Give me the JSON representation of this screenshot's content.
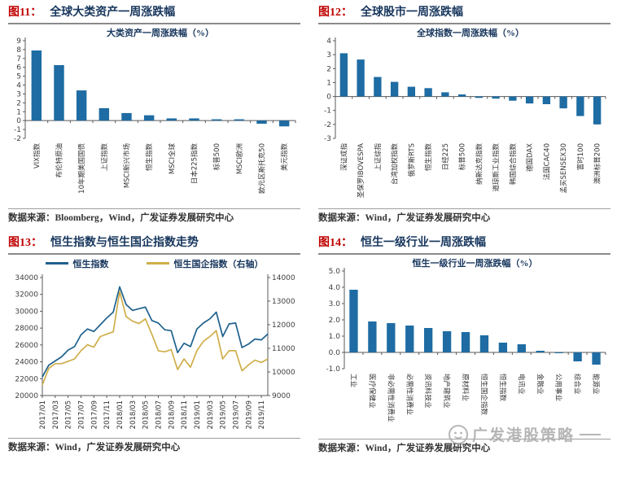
{
  "page": {
    "watermark": "广发港股策略"
  },
  "panels": [
    {
      "fig_label": "图11：",
      "title": "全球大类资产一周涨跌幅",
      "source": "数据来源：Bloomberg，Wind，广发证券发展研究中心"
    },
    {
      "fig_label": "图12：",
      "title": "全球股市一周涨跌幅",
      "source": "数据来源：Wind，广发证券发展研究中心"
    },
    {
      "fig_label": "图13：",
      "title": "恒生指数与恒生国企指数走势",
      "source": "数据来源：Wind，广发证券发展研究中心"
    },
    {
      "fig_label": "图14：",
      "title": "恒生一级行业一周涨跌幅",
      "source": "数据来源：Wind，广发证券发展研究中心"
    }
  ],
  "chart_data": [
    {
      "type": "bar",
      "title": "大类资产一周涨跌幅（%）",
      "categories": [
        "VIX指数",
        "布伦特原油",
        "10年期美国国债",
        "上证指数",
        "MSCI新兴市场",
        "恒生指数",
        "MSCI全球",
        "日本225指数",
        "标普500",
        "MSCI欧洲",
        "欧元区斯托克50",
        "美元指数"
      ],
      "values": [
        7.9,
        6.25,
        3.4,
        1.4,
        0.85,
        0.6,
        0.25,
        0.25,
        0.15,
        0.15,
        -0.35,
        -0.65
      ],
      "ylim": [
        -2,
        9
      ],
      "ystep": 1,
      "ydecimals": 0,
      "grid": false,
      "label_rotation": "ccw",
      "bar_color": "#1e6ca3"
    },
    {
      "type": "bar",
      "title": "全球指数一周涨跌幅（%）",
      "categories": [
        "深证成指",
        "圣保罗IBOVESPA",
        "上证综指",
        "台湾加权指数",
        "俄罗斯RTS",
        "恒生指数",
        "日经225",
        "标普500",
        "纳斯达克指数",
        "道琼斯工业指数",
        "韩国综合指数",
        "德国DAX",
        "法国CAC40",
        "孟买SENSEX30",
        "富时100",
        "澳洲标普200"
      ],
      "values": [
        3.1,
        2.65,
        1.4,
        1.05,
        0.7,
        0.6,
        0.3,
        0.15,
        -0.1,
        -0.15,
        -0.3,
        -0.5,
        -0.55,
        -0.85,
        -1.4,
        -2.0
      ],
      "ylim": [
        -3,
        4
      ],
      "ystep": 1,
      "ydecimals": 0,
      "grid": false,
      "label_rotation": "ccw",
      "bar_color": "#1e6ca3"
    },
    {
      "type": "line",
      "title": "",
      "x_months": [
        "2017/01",
        "2017/02",
        "2017/03",
        "2017/04",
        "2017/05",
        "2017/06",
        "2017/07",
        "2017/08",
        "2017/09",
        "2017/10",
        "2017/11",
        "2017/12",
        "2018/01",
        "2018/02",
        "2018/03",
        "2018/04",
        "2018/05",
        "2018/06",
        "2018/07",
        "2018/08",
        "2018/09",
        "2018/10",
        "2018/11",
        "2018/12",
        "2019/01",
        "2019/02",
        "2019/03",
        "2019/04",
        "2019/05",
        "2019/06",
        "2019/07",
        "2019/08",
        "2019/09",
        "2019/10",
        "2019/11",
        "2019/12"
      ],
      "x_tick_labels": [
        "2017/01",
        "2017/03",
        "2017/05",
        "2017/07",
        "2017/09",
        "2017/11",
        "2018/01",
        "2018/03",
        "2018/05",
        "2018/07",
        "2018/09",
        "2018/11",
        "2019/01",
        "2019/03",
        "2019/05",
        "2019/07",
        "2019/09",
        "2019/11"
      ],
      "x_tick_every": 2,
      "left_ylim": [
        20000,
        34000
      ],
      "left_ystep": 2000,
      "right_ylim": [
        9000,
        14000
      ],
      "right_ystep": 1000,
      "legend_position": "top",
      "grid": false,
      "series": [
        {
          "name": "恒生指数",
          "axis": "left",
          "color": "#1f618d",
          "values": [
            22200,
            23600,
            24100,
            24600,
            25400,
            25800,
            27200,
            27900,
            27600,
            28400,
            29200,
            29900,
            32900,
            30800,
            30100,
            30300,
            30500,
            28900,
            28600,
            27800,
            27700,
            25100,
            26200,
            25800,
            27900,
            28600,
            29100,
            29900,
            27000,
            28500,
            28600,
            25700,
            26100,
            26700,
            26600,
            27300
          ]
        },
        {
          "name": "恒生国企指数（右轴）",
          "axis": "right",
          "color": "#cfae4a",
          "values": [
            9450,
            10150,
            10350,
            10350,
            10450,
            10550,
            10900,
            11150,
            11050,
            11500,
            11600,
            11700,
            13400,
            12350,
            12150,
            12050,
            12250,
            11600,
            10900,
            10850,
            10950,
            10100,
            10550,
            10200,
            10900,
            11300,
            11500,
            11750,
            10550,
            10900,
            10900,
            10050,
            10300,
            10500,
            10400,
            10550
          ]
        }
      ]
    },
    {
      "type": "bar",
      "title": "恒生一级行业一周涨跌幅（%）",
      "categories": [
        "工业",
        "医疗保健业",
        "非必需性消费业",
        "必需性消费业",
        "资讯科技业",
        "地产建筑业",
        "原材料业",
        "恒生国企指数",
        "恒生指数",
        "电讯业",
        "金融业",
        "公用事业",
        "综合业",
        "能源业"
      ],
      "values": [
        3.85,
        1.9,
        1.8,
        1.65,
        1.5,
        1.3,
        1.25,
        1.05,
        0.6,
        0.5,
        0.1,
        -0.05,
        -0.55,
        -0.75
      ],
      "ylim": [
        -1,
        5
      ],
      "ystep": 1,
      "ydecimals": 1,
      "grid": false,
      "label_rotation": "cw",
      "bar_color": "#1e6ca3"
    }
  ]
}
